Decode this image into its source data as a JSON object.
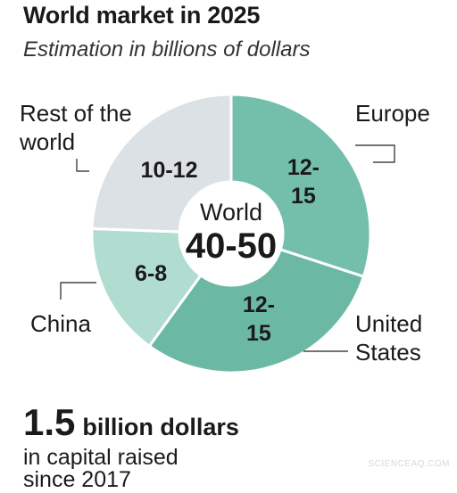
{
  "title": "World market in 2025",
  "subtitle": "Estimation in billions of dollars",
  "chart_data": {
    "type": "pie",
    "variant": "donut",
    "unit": "billions of dollars",
    "center": {
      "label": "World",
      "value": "40-50"
    },
    "slices": [
      {
        "name": "Europe",
        "range": "12-15",
        "value_label_lines": [
          "12-",
          "15"
        ],
        "label_lines": [
          "Europe"
        ],
        "value": 13.5,
        "color": "#74bfab"
      },
      {
        "name": "United States",
        "range": "12-15",
        "value_label_lines": [
          "12-",
          "15"
        ],
        "label_lines": [
          "United",
          "States"
        ],
        "value": 13.5,
        "color": "#6bb9a4"
      },
      {
        "name": "China",
        "range": "6-8",
        "value_label_lines": [
          "6-8"
        ],
        "label_lines": [
          "China"
        ],
        "value": 7,
        "color": "#b1dcd0"
      },
      {
        "name": "Rest of the world",
        "range": "10-12",
        "value_label_lines": [
          "10-12"
        ],
        "label_lines": [
          "Rest of the",
          "world"
        ],
        "value": 11,
        "color": "#dce1e5"
      }
    ]
  },
  "stat": {
    "value": "1.5",
    "unit": "billion dollars",
    "line2": "in capital raised",
    "line3": "since 2017"
  },
  "credit": "SCIENCEAQ.COM"
}
